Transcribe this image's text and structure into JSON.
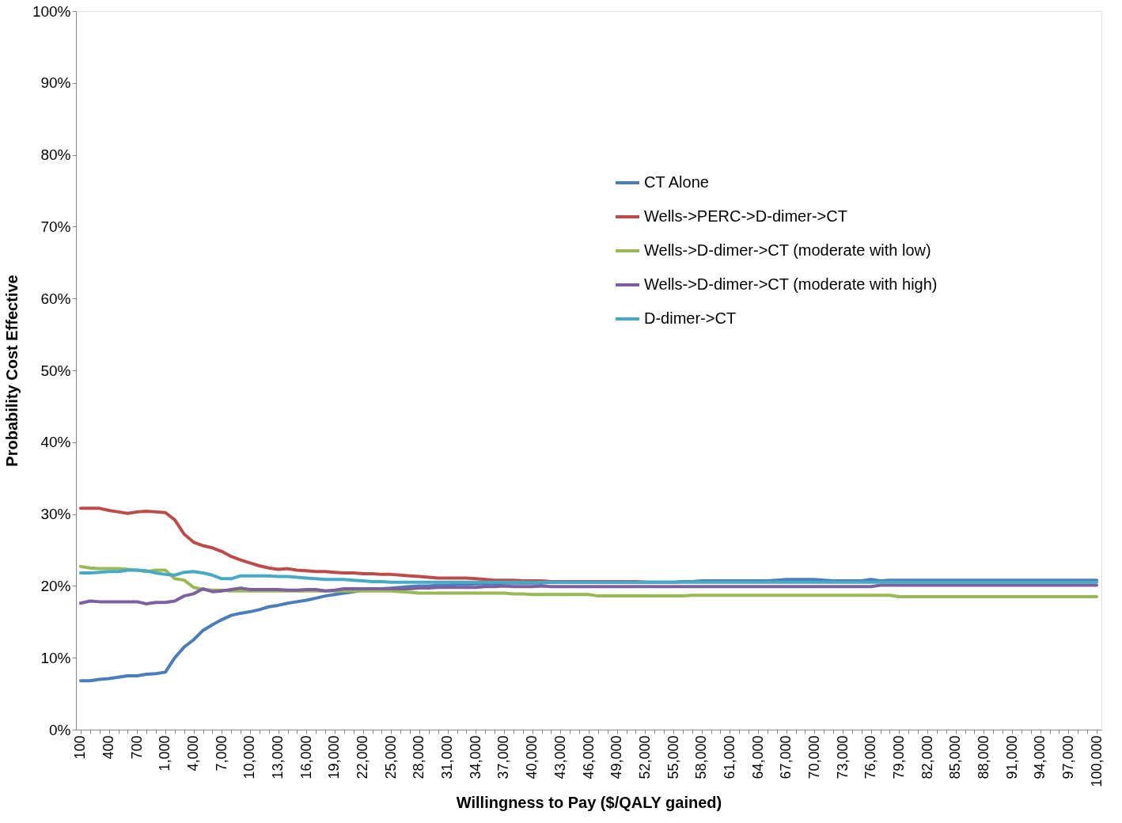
{
  "chart_data": {
    "type": "line",
    "xlabel": "Willingness to Pay ($/QALY gained)",
    "ylabel": "Probability Cost Effective",
    "categories": [
      "100",
      null,
      null,
      "400",
      null,
      null,
      "700",
      null,
      null,
      "1,000",
      null,
      null,
      "4,000",
      null,
      null,
      "7,000",
      null,
      null,
      "10,000",
      null,
      null,
      "13,000",
      null,
      null,
      "16,000",
      null,
      null,
      "19,000",
      null,
      null,
      "22,000",
      null,
      null,
      "25,000",
      null,
      null,
      "28,000",
      null,
      null,
      "31,000",
      null,
      null,
      "34,000",
      null,
      null,
      "37,000",
      null,
      null,
      "40,000",
      null,
      null,
      "43,000",
      null,
      null,
      "46,000",
      null,
      null,
      "49,000",
      null,
      null,
      "52,000",
      null,
      null,
      "55,000",
      null,
      null,
      "58,000",
      null,
      null,
      "61,000",
      null,
      null,
      "64,000",
      null,
      null,
      "67,000",
      null,
      null,
      "70,000",
      null,
      null,
      "73,000",
      null,
      null,
      "76,000",
      null,
      null,
      "79,000",
      null,
      null,
      "82,000",
      null,
      null,
      "85,000",
      null,
      null,
      "88,000",
      null,
      null,
      "91,000",
      null,
      null,
      "94,000",
      null,
      null,
      "97,000",
      null,
      null,
      "100,000"
    ],
    "series": [
      {
        "name": "CT Alone",
        "color": "#4a7ebb",
        "values": [
          6.8,
          6.8,
          7.0,
          7.1,
          7.3,
          7.5,
          7.5,
          7.7,
          7.8,
          8.0,
          10.0,
          11.5,
          12.5,
          13.8,
          14.6,
          15.3,
          15.9,
          16.2,
          16.4,
          16.7,
          17.1,
          17.3,
          17.6,
          17.8,
          18.0,
          18.3,
          18.6,
          18.8,
          19.0,
          19.2,
          19.4,
          19.5,
          19.6,
          19.7,
          19.8,
          19.9,
          20.0,
          20.0,
          20.1,
          20.1,
          20.2,
          20.2,
          20.3,
          20.3,
          20.3,
          20.4,
          20.4,
          20.4,
          20.4,
          20.4,
          20.5,
          20.5,
          20.5,
          20.5,
          20.5,
          20.5,
          20.5,
          20.5,
          20.5,
          20.5,
          20.5,
          20.5,
          20.5,
          20.5,
          20.6,
          20.6,
          20.7,
          20.7,
          20.7,
          20.7,
          20.7,
          20.7,
          20.7,
          20.7,
          20.8,
          20.9,
          20.9,
          20.9,
          20.9,
          20.8,
          20.7,
          20.7,
          20.7,
          20.7,
          20.9,
          20.7,
          20.8,
          20.8,
          20.8,
          20.8,
          20.8,
          20.8,
          20.8,
          20.8,
          20.8,
          20.8,
          20.8,
          20.8,
          20.8,
          20.8,
          20.8,
          20.8,
          20.8,
          20.8,
          20.8,
          20.8,
          20.8,
          20.8,
          20.8
        ]
      },
      {
        "name": "Wells->PERC->D-dimer->CT",
        "color": "#be4b48",
        "values": [
          30.8,
          30.8,
          30.8,
          30.5,
          30.3,
          30.1,
          30.3,
          30.4,
          30.3,
          30.2,
          29.2,
          27.2,
          26.1,
          25.6,
          25.3,
          24.8,
          24.1,
          23.6,
          23.2,
          22.8,
          22.5,
          22.3,
          22.4,
          22.2,
          22.1,
          22.0,
          22.0,
          21.9,
          21.8,
          21.8,
          21.7,
          21.7,
          21.6,
          21.6,
          21.5,
          21.4,
          21.3,
          21.2,
          21.1,
          21.1,
          21.1,
          21.1,
          21.0,
          20.9,
          20.8,
          20.8,
          20.8,
          20.7,
          20.7,
          20.7,
          20.6,
          20.6,
          20.6,
          20.6,
          20.6,
          20.6,
          20.6,
          20.6,
          20.6,
          20.6,
          20.5,
          null,
          null,
          null,
          null,
          null,
          null,
          null,
          null,
          null,
          null,
          null,
          null,
          null,
          null,
          null,
          null,
          null,
          null,
          null,
          null,
          null,
          null,
          null,
          null,
          null,
          null,
          null,
          null,
          null,
          null,
          null,
          null,
          null,
          null,
          null,
          null,
          null,
          null,
          null,
          null,
          null,
          null,
          null,
          null,
          null,
          null,
          null,
          null
        ]
      },
      {
        "name": "Wells->D-dimer->CT (moderate with low)",
        "color": "#98b954",
        "values": [
          22.7,
          22.5,
          22.4,
          22.4,
          22.4,
          22.3,
          22.2,
          22.0,
          22.2,
          22.2,
          21.0,
          20.8,
          19.8,
          19.5,
          19.4,
          19.4,
          19.3,
          19.3,
          19.3,
          19.3,
          19.3,
          19.3,
          19.3,
          19.3,
          19.3,
          19.3,
          19.3,
          19.3,
          19.3,
          19.3,
          19.3,
          19.3,
          19.3,
          19.3,
          19.2,
          19.1,
          19.0,
          19.0,
          19.0,
          19.0,
          19.0,
          19.0,
          19.0,
          19.0,
          19.0,
          19.0,
          18.9,
          18.9,
          18.8,
          18.8,
          18.8,
          18.8,
          18.8,
          18.8,
          18.8,
          18.6,
          18.6,
          18.6,
          18.6,
          18.6,
          18.6,
          18.6,
          18.6,
          18.6,
          18.6,
          18.7,
          18.7,
          18.7,
          18.7,
          18.7,
          18.7,
          18.7,
          18.7,
          18.7,
          18.7,
          18.7,
          18.7,
          18.7,
          18.7,
          18.7,
          18.7,
          18.7,
          18.7,
          18.7,
          18.7,
          18.7,
          18.7,
          18.5,
          18.5,
          18.5,
          18.5,
          18.5,
          18.5,
          18.5,
          18.5,
          18.5,
          18.5,
          18.5,
          18.5,
          18.5,
          18.5,
          18.5,
          18.5,
          18.5,
          18.5,
          18.5,
          18.5,
          18.5,
          18.5
        ]
      },
      {
        "name": "Wells->D-dimer->CT (moderate with high)",
        "color": "#7d60a0",
        "values": [
          17.6,
          17.9,
          17.8,
          17.8,
          17.8,
          17.8,
          17.8,
          17.5,
          17.7,
          17.7,
          17.9,
          18.6,
          18.9,
          19.6,
          19.2,
          19.3,
          19.5,
          19.7,
          19.5,
          19.5,
          19.5,
          19.5,
          19.4,
          19.4,
          19.5,
          19.5,
          19.3,
          19.4,
          19.6,
          19.6,
          19.6,
          19.6,
          19.6,
          19.6,
          19.6,
          19.6,
          19.7,
          19.7,
          19.8,
          19.8,
          19.8,
          19.8,
          19.8,
          19.9,
          19.9,
          20.0,
          19.9,
          19.9,
          19.9,
          20.0,
          19.9,
          19.9,
          19.9,
          19.9,
          19.9,
          19.9,
          19.9,
          19.9,
          19.9,
          19.9,
          19.9,
          19.9,
          19.9,
          19.9,
          19.9,
          19.9,
          19.9,
          19.9,
          19.9,
          19.9,
          19.9,
          19.9,
          19.9,
          19.9,
          19.9,
          19.9,
          19.9,
          19.9,
          19.9,
          19.9,
          19.9,
          19.9,
          19.9,
          19.9,
          19.9,
          20.1,
          20.1,
          20.1,
          20.1,
          20.1,
          20.1,
          20.1,
          20.1,
          20.1,
          20.1,
          20.1,
          20.1,
          20.1,
          20.1,
          20.1,
          20.1,
          20.1,
          20.1,
          20.1,
          20.1,
          20.1,
          20.1,
          20.1,
          20.1
        ]
      },
      {
        "name": "D-dimer->CT",
        "color": "#46aac5",
        "values": [
          21.8,
          21.8,
          21.9,
          22.0,
          22.0,
          22.2,
          22.2,
          22.1,
          21.8,
          21.6,
          21.5,
          21.9,
          22.0,
          21.8,
          21.5,
          21.0,
          21.0,
          21.4,
          21.4,
          21.4,
          21.4,
          21.3,
          21.3,
          21.2,
          21.1,
          21.0,
          20.9,
          20.9,
          20.9,
          20.8,
          20.7,
          20.6,
          20.6,
          20.5,
          20.5,
          20.5,
          20.5,
          20.5,
          20.5,
          20.5,
          20.5,
          20.5,
          20.5,
          20.5,
          20.5,
          20.5,
          20.5,
          20.5,
          20.5,
          20.5,
          20.5,
          20.5,
          20.5,
          20.5,
          20.5,
          20.5,
          20.5,
          20.5,
          20.5,
          20.5,
          20.5,
          20.5,
          20.5,
          20.5,
          20.5,
          20.5,
          20.5,
          20.5,
          20.5,
          20.5,
          20.5,
          20.5,
          20.5,
          20.5,
          20.5,
          20.5,
          20.5,
          20.5,
          20.5,
          20.5,
          20.5,
          20.5,
          20.5,
          20.5,
          20.5,
          20.5,
          20.5,
          20.5,
          20.5,
          20.5,
          20.5,
          20.5,
          20.5,
          20.5,
          20.5,
          20.5,
          20.5,
          20.5,
          20.5,
          20.5,
          20.5,
          20.5,
          20.5,
          20.5,
          20.5,
          20.5,
          20.5,
          20.5,
          20.5
        ]
      }
    ],
    "ylim": [
      0,
      100
    ],
    "yticks": [
      {
        "value": 0,
        "label": "0%"
      },
      {
        "value": 10,
        "label": "10%"
      },
      {
        "value": 20,
        "label": "20%"
      },
      {
        "value": 30,
        "label": "30%"
      },
      {
        "value": 40,
        "label": "40%"
      },
      {
        "value": 50,
        "label": "50%"
      },
      {
        "value": 60,
        "label": "60%"
      },
      {
        "value": 70,
        "label": "70%"
      },
      {
        "value": 80,
        "label": "80%"
      },
      {
        "value": 90,
        "label": "90%"
      },
      {
        "value": 100,
        "label": "100%"
      }
    ],
    "grid": false,
    "legend": "top right",
    "marker": "none",
    "line_style": "solid"
  }
}
